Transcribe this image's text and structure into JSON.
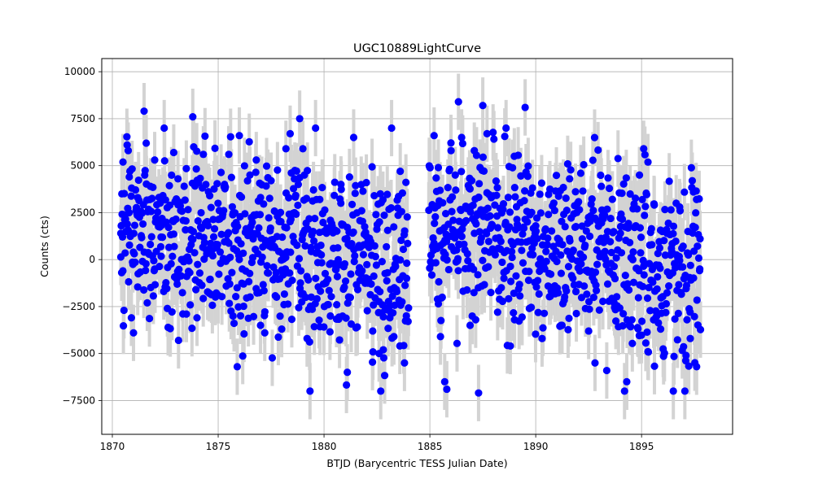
{
  "chart_data": {
    "type": "scatter",
    "title": "UGC10889LightCurve",
    "xlabel": "BTJD (Barycentric TESS Julian Date)",
    "ylabel": "Counts (cts)",
    "xlim": [
      1869.5,
      1899.3
    ],
    "ylim": [
      -9300,
      10700
    ],
    "xticks": [
      1870,
      1875,
      1880,
      1885,
      1890,
      1895
    ],
    "yticks": [
      -7500,
      -5000,
      -2500,
      0,
      2500,
      5000,
      7500,
      10000
    ],
    "xtick_labels": [
      "1870",
      "1875",
      "1880",
      "1885",
      "1890",
      "1895"
    ],
    "ytick_labels": [
      "−7500",
      "−5000",
      "−2500",
      "0",
      "2500",
      "5000",
      "7500",
      "10000"
    ],
    "grid": true,
    "marker_color": "#0000ff",
    "errorbar_color": "#d3d3d3",
    "error_bar": 1500,
    "segments": [
      {
        "x_start": 1870.4,
        "x_end": 1884.0,
        "cadence": 0.0208
      },
      {
        "x_start": 1884.95,
        "x_end": 1897.8,
        "cadence": 0.0208
      }
    ],
    "points": [
      [
        1870.4,
        1400
      ],
      [
        1870.45,
        3500
      ],
      [
        1870.5,
        -600
      ],
      [
        1870.55,
        -2700
      ],
      [
        1870.6,
        2100
      ],
      [
        1870.7,
        6100
      ],
      [
        1870.75,
        5800
      ],
      [
        1870.8,
        4400
      ],
      [
        1870.9,
        -3100
      ],
      [
        1871.0,
        -3900
      ],
      [
        1871.2,
        3300
      ],
      [
        1871.5,
        7900
      ],
      [
        1871.6,
        6200
      ],
      [
        1871.8,
        3900
      ],
      [
        1872.0,
        5300
      ],
      [
        1872.3,
        1200
      ],
      [
        1872.6,
        -2600
      ],
      [
        1872.9,
        5700
      ],
      [
        1873.1,
        4300
      ],
      [
        1873.5,
        -2900
      ],
      [
        1873.8,
        7600
      ],
      [
        1874.0,
        -3100
      ],
      [
        1874.3,
        5600
      ],
      [
        1874.6,
        3400
      ],
      [
        1875.0,
        -1900
      ],
      [
        1875.3,
        4000
      ],
      [
        1875.5,
        5600
      ],
      [
        1875.7,
        -3000
      ],
      [
        1875.9,
        -5700
      ],
      [
        1876.0,
        6600
      ],
      [
        1876.2,
        -1300
      ],
      [
        1876.5,
        4500
      ],
      [
        1876.8,
        5300
      ],
      [
        1877.0,
        -3500
      ],
      [
        1877.2,
        -3900
      ],
      [
        1877.5,
        4200
      ],
      [
        1877.8,
        2300
      ],
      [
        1878.0,
        -3700
      ],
      [
        1878.2,
        5900
      ],
      [
        1878.4,
        6700
      ],
      [
        1878.6,
        4300
      ],
      [
        1878.85,
        7500
      ],
      [
        1879.0,
        5900
      ],
      [
        1879.2,
        -4200
      ],
      [
        1879.4,
        -2000
      ],
      [
        1879.6,
        7000
      ],
      [
        1879.8,
        3200
      ],
      [
        1880.0,
        1500
      ],
      [
        1880.3,
        -3000
      ],
      [
        1880.6,
        -2400
      ],
      [
        1880.8,
        4000
      ],
      [
        1881.1,
        -6000
      ],
      [
        1881.4,
        6500
      ],
      [
        1881.7,
        -1100
      ],
      [
        1882.0,
        4100
      ],
      [
        1882.3,
        -3800
      ],
      [
        1882.6,
        -5000
      ],
      [
        1882.8,
        -4800
      ],
      [
        1883.0,
        -700
      ],
      [
        1883.3,
        -4100
      ],
      [
        1883.6,
        4700
      ],
      [
        1883.8,
        -5500
      ],
      [
        1883.9,
        -1000
      ],
      [
        1885.0,
        4900
      ],
      [
        1885.1,
        2800
      ],
      [
        1885.2,
        6600
      ],
      [
        1885.4,
        4900
      ],
      [
        1885.5,
        -4100
      ],
      [
        1885.7,
        -6500
      ],
      [
        1885.8,
        -6900
      ],
      [
        1886.0,
        5800
      ],
      [
        1886.2,
        4500
      ],
      [
        1886.35,
        8400
      ],
      [
        1886.5,
        6500
      ],
      [
        1886.7,
        2800
      ],
      [
        1886.9,
        -3500
      ],
      [
        1887.1,
        5800
      ],
      [
        1887.3,
        -7100
      ],
      [
        1887.5,
        8200
      ],
      [
        1887.7,
        6700
      ],
      [
        1887.9,
        3300
      ],
      [
        1888.2,
        -2800
      ],
      [
        1888.5,
        -1000
      ],
      [
        1888.8,
        -4600
      ],
      [
        1889.0,
        -3200
      ],
      [
        1889.2,
        1700
      ],
      [
        1889.5,
        8100
      ],
      [
        1889.7,
        -2600
      ],
      [
        1890.0,
        1800
      ],
      [
        1890.3,
        -4200
      ],
      [
        1890.6,
        2400
      ],
      [
        1890.9,
        -1400
      ],
      [
        1891.2,
        -3500
      ],
      [
        1891.6,
        4300
      ],
      [
        1891.9,
        -1700
      ],
      [
        1892.2,
        1100
      ],
      [
        1892.5,
        -3800
      ],
      [
        1892.8,
        -5500
      ],
      [
        1893.1,
        3900
      ],
      [
        1893.4,
        -1300
      ],
      [
        1893.7,
        -2300
      ],
      [
        1894.0,
        1400
      ],
      [
        1894.3,
        -6500
      ],
      [
        1894.6,
        2700
      ],
      [
        1894.9,
        4500
      ],
      [
        1895.1,
        5900
      ],
      [
        1895.3,
        -4900
      ],
      [
        1895.6,
        2900
      ],
      [
        1895.9,
        -3700
      ],
      [
        1896.2,
        1400
      ],
      [
        1896.5,
        -7000
      ],
      [
        1896.8,
        2800
      ],
      [
        1897.1,
        -5100
      ],
      [
        1897.3,
        -4200
      ],
      [
        1897.45,
        3600
      ],
      [
        1897.6,
        -5700
      ],
      [
        1897.75,
        -500
      ]
    ]
  }
}
